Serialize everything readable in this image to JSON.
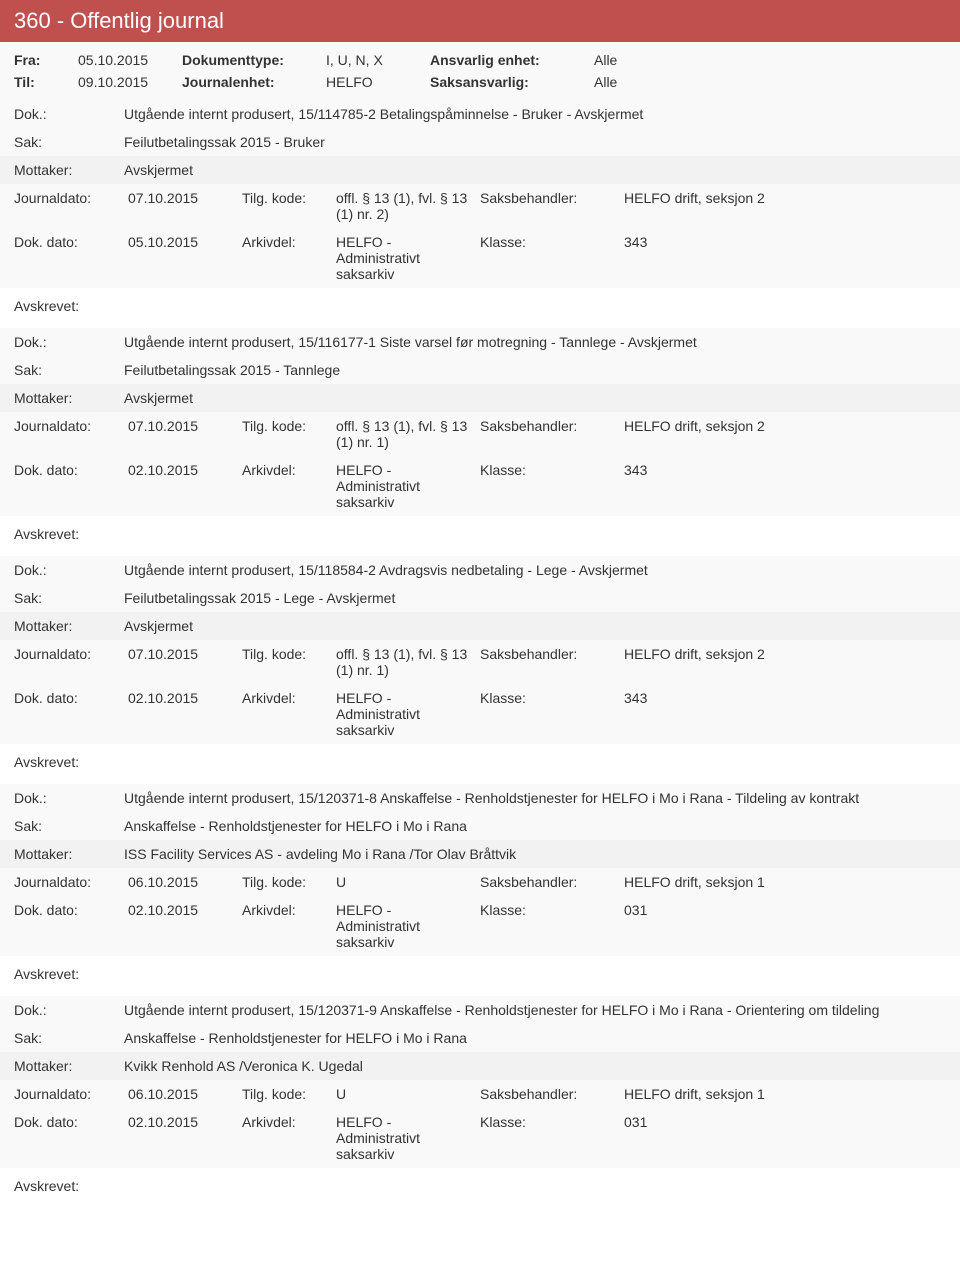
{
  "header": {
    "title": "360 - Offentlig journal"
  },
  "meta": {
    "fra_label": "Fra:",
    "fra_value": "05.10.2015",
    "til_label": "Til:",
    "til_value": "09.10.2015",
    "doktype_label": "Dokumenttype:",
    "doktype_value": "I, U, N, X",
    "journalenhet_label": "Journalenhet:",
    "journalenhet_value": "HELFO",
    "ansvarlig_label": "Ansvarlig enhet:",
    "ansvarlig_value": "Alle",
    "saksansvarlig_label": "Saksansvarlig:",
    "saksansvarlig_value": "Alle"
  },
  "labels": {
    "dok": "Dok.:",
    "sak": "Sak:",
    "mottaker": "Mottaker:",
    "journaldato": "Journaldato:",
    "tilgkode": "Tilg. kode:",
    "saksbehandler": "Saksbehandler:",
    "dokdato": "Dok. dato:",
    "arkivdel": "Arkivdel:",
    "klasse": "Klasse:",
    "avskrevet": "Avskrevet:"
  },
  "entries": [
    {
      "dok": "Utgående internt produsert, 15/114785-2 Betalingspåminnelse - Bruker - Avskjermet",
      "sak": "Feilutbetalingssak 2015 - Bruker",
      "mottaker": "Avskjermet",
      "journaldato": "07.10.2015",
      "tilgkode": "offl. § 13 (1), fvl. § 13 (1) nr. 2)",
      "saksbehandler": "HELFO drift, seksjon 2",
      "dokdato": "05.10.2015",
      "arkivdel": "HELFO - Administrativt saksarkiv",
      "klasse": "343"
    },
    {
      "dok": "Utgående internt produsert, 15/116177-1 Siste varsel før motregning - Tannlege - Avskjermet",
      "sak": "Feilutbetalingssak 2015 - Tannlege",
      "mottaker": "Avskjermet",
      "journaldato": "07.10.2015",
      "tilgkode": "offl. § 13 (1), fvl. § 13 (1) nr. 1)",
      "saksbehandler": "HELFO drift, seksjon 2",
      "dokdato": "02.10.2015",
      "arkivdel": "HELFO - Administrativt saksarkiv",
      "klasse": "343"
    },
    {
      "dok": "Utgående internt produsert, 15/118584-2 Avdragsvis nedbetaling - Lege - Avskjermet",
      "sak": "Feilutbetalingssak 2015 - Lege - Avskjermet",
      "mottaker": "Avskjermet",
      "journaldato": "07.10.2015",
      "tilgkode": "offl. § 13 (1), fvl. § 13 (1) nr. 1)",
      "saksbehandler": "HELFO drift, seksjon 2",
      "dokdato": "02.10.2015",
      "arkivdel": "HELFO - Administrativt saksarkiv",
      "klasse": "343"
    },
    {
      "dok": "Utgående internt produsert, 15/120371-8 Anskaffelse - Renholdstjenester for HELFO i Mo i Rana - Tildeling av kontrakt",
      "sak": "Anskaffelse - Renholdstjenester for HELFO i Mo i Rana",
      "mottaker": "ISS Facility Services AS - avdeling Mo i Rana /Tor Olav Bråttvik",
      "journaldato": "06.10.2015",
      "tilgkode": "U",
      "saksbehandler": "HELFO drift, seksjon 1",
      "dokdato": "02.10.2015",
      "arkivdel": "HELFO - Administrativt saksarkiv",
      "klasse": "031"
    },
    {
      "dok": "Utgående internt produsert, 15/120371-9 Anskaffelse - Renholdstjenester for HELFO i Mo i Rana - Orientering om tildeling",
      "sak": "Anskaffelse - Renholdstjenester for HELFO i Mo i Rana",
      "mottaker": "Kvikk Renhold AS /Veronica K. Ugedal",
      "journaldato": "06.10.2015",
      "tilgkode": "U",
      "saksbehandler": "HELFO drift, seksjon 1",
      "dokdato": "02.10.2015",
      "arkivdel": "HELFO - Administrativt saksarkiv",
      "klasse": "031"
    }
  ]
}
